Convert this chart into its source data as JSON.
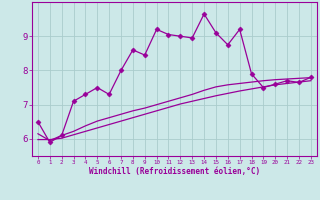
{
  "title": "",
  "xlabel": "Windchill (Refroidissement éolien,°C)",
  "ylabel": "",
  "background_color": "#cce8e8",
  "grid_color": "#aacccc",
  "line_color": "#990099",
  "x_values": [
    0,
    1,
    2,
    3,
    4,
    5,
    6,
    7,
    8,
    9,
    10,
    11,
    12,
    13,
    14,
    15,
    16,
    17,
    18,
    19,
    20,
    21,
    22,
    23
  ],
  "line1": [
    6.5,
    5.9,
    6.1,
    7.1,
    7.3,
    7.5,
    7.3,
    8.0,
    8.6,
    8.45,
    9.2,
    9.05,
    9.0,
    8.95,
    9.65,
    9.1,
    8.75,
    9.2,
    7.9,
    7.5,
    7.6,
    7.7,
    7.65,
    7.8
  ],
  "line2": [
    6.15,
    5.95,
    6.1,
    6.22,
    6.38,
    6.52,
    6.62,
    6.72,
    6.82,
    6.9,
    7.0,
    7.1,
    7.2,
    7.3,
    7.42,
    7.52,
    7.58,
    7.62,
    7.66,
    7.7,
    7.73,
    7.75,
    7.77,
    7.79
  ],
  "line3": [
    5.98,
    5.98,
    6.02,
    6.12,
    6.22,
    6.32,
    6.42,
    6.52,
    6.62,
    6.72,
    6.82,
    6.92,
    7.02,
    7.1,
    7.18,
    7.26,
    7.33,
    7.4,
    7.46,
    7.52,
    7.58,
    7.62,
    7.66,
    7.7
  ],
  "ylim": [
    5.5,
    10.0
  ],
  "yticks": [
    6,
    7,
    8,
    9
  ],
  "xlim": [
    -0.5,
    23.5
  ]
}
